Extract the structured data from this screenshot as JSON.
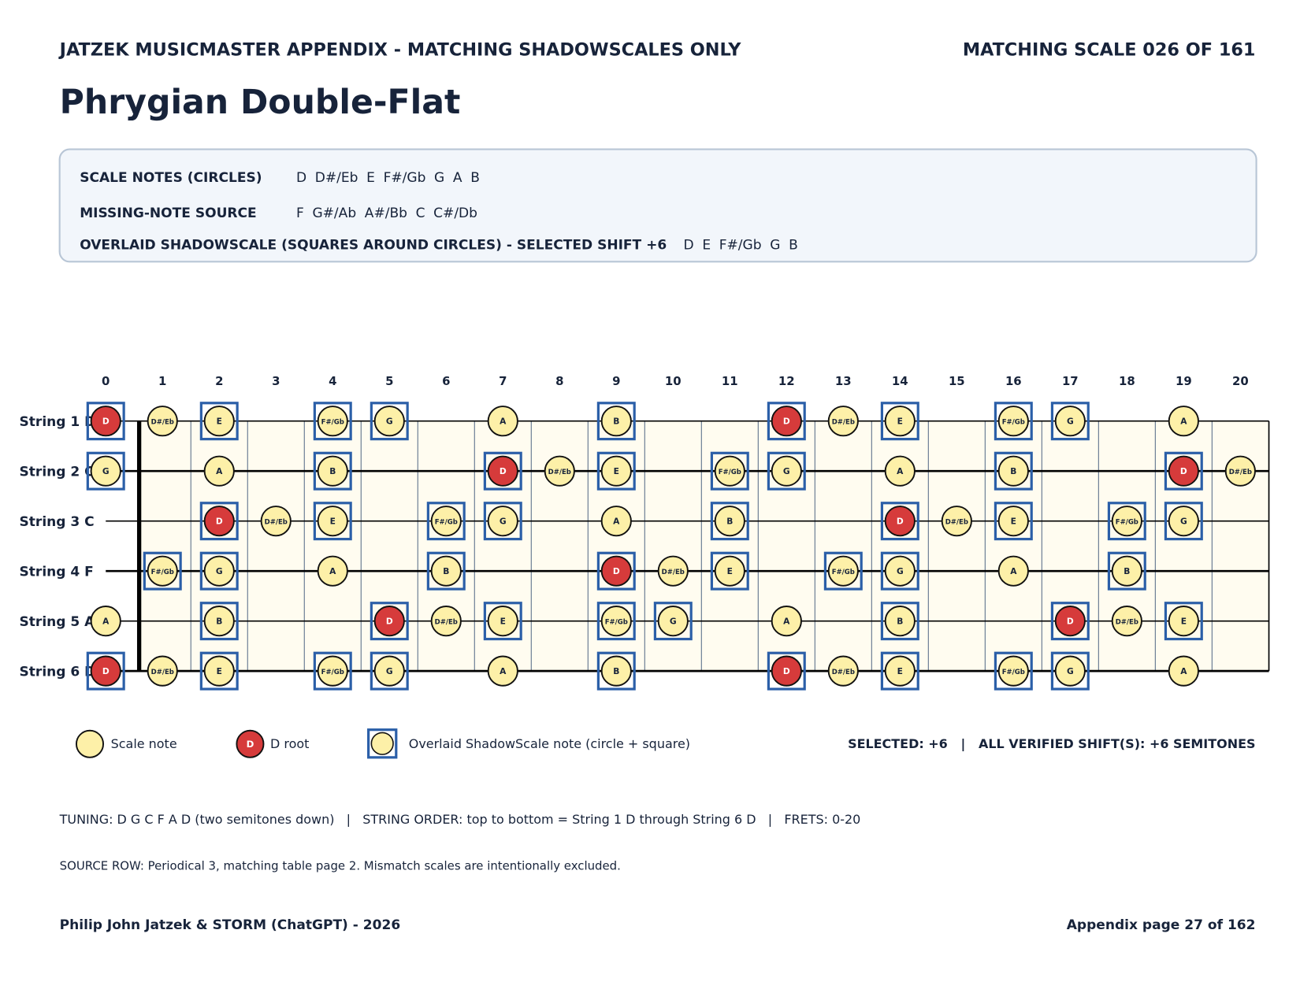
{
  "header": {
    "left": "JATZEK MUSICMASTER APPENDIX - MATCHING SHADOWSCALES ONLY",
    "right": "MATCHING SCALE 026 OF 161"
  },
  "title": "Phrygian Double-Flat",
  "info": [
    {
      "label": "SCALE NOTES (CIRCLES)",
      "notes": [
        "D",
        "D#/Eb",
        "E",
        "F#/Gb",
        "G",
        "A",
        "B"
      ]
    },
    {
      "label": "MISSING-NOTE SOURCE",
      "notes": [
        "F",
        "G#/Ab",
        "A#/Bb",
        "C",
        "C#/Db"
      ]
    },
    {
      "label": "OVERLAID SHADOWSCALE (SQUARES AROUND CIRCLES) - SELECTED SHIFT +6",
      "notes": [
        "D",
        "E",
        "F#/Gb",
        "G",
        "B"
      ]
    }
  ],
  "fretboard": {
    "frets": [
      0,
      1,
      2,
      3,
      4,
      5,
      6,
      7,
      8,
      9,
      10,
      11,
      12,
      13,
      14,
      15,
      16,
      17,
      18,
      19,
      20
    ],
    "strings": [
      {
        "label": "String 1 D",
        "notes": [
          "D",
          "D#/Eb",
          "E",
          null,
          "F#/Gb",
          "G",
          null,
          "A",
          null,
          "B",
          null,
          null,
          "D",
          "D#/Eb",
          "E",
          null,
          "F#/Gb",
          "G",
          null,
          "A",
          null
        ]
      },
      {
        "label": "String 2 G",
        "notes": [
          "G",
          null,
          "A",
          null,
          "B",
          null,
          null,
          "D",
          "D#/Eb",
          "E",
          null,
          "F#/Gb",
          "G",
          null,
          "A",
          null,
          "B",
          null,
          null,
          "D",
          "D#/Eb"
        ]
      },
      {
        "label": "String 3 C",
        "notes": [
          null,
          null,
          "D",
          "D#/Eb",
          "E",
          null,
          "F#/Gb",
          "G",
          null,
          "A",
          null,
          "B",
          null,
          null,
          "D",
          "D#/Eb",
          "E",
          null,
          "F#/Gb",
          "G",
          null
        ]
      },
      {
        "label": "String 4 F",
        "notes": [
          null,
          "F#/Gb",
          "G",
          null,
          "A",
          null,
          "B",
          null,
          null,
          "D",
          "D#/Eb",
          "E",
          null,
          "F#/Gb",
          "G",
          null,
          "A",
          null,
          "B",
          null,
          null
        ]
      },
      {
        "label": "String 5 A",
        "notes": [
          "A",
          null,
          "B",
          null,
          null,
          "D",
          "D#/Eb",
          "E",
          null,
          "F#/Gb",
          "G",
          null,
          "A",
          null,
          "B",
          null,
          null,
          "D",
          "D#/Eb",
          "E",
          null
        ]
      },
      {
        "label": "String 6 D",
        "notes": [
          "D",
          "D#/Eb",
          "E",
          null,
          "F#/Gb",
          "G",
          null,
          "A",
          null,
          "B",
          null,
          null,
          "D",
          "D#/Eb",
          "E",
          null,
          "F#/Gb",
          "G",
          null,
          "A",
          null
        ]
      }
    ]
  },
  "legend": {
    "scale": "Scale note",
    "root": "D root",
    "overlay": "Overlaid ShadowScale note (circle + square)",
    "shifts": "SELECTED: +6   |   ALL VERIFIED SHIFT(S): +6 SEMITONES"
  },
  "notes": [
    "TUNING: D G C F A D (two semitones down)   |   STRING ORDER: top to bottom = String 1 D through String 6 D   |   FRETS: 0-20",
    "SOURCE ROW: Periodical 3, matching table page 2. Mismatch scales are intentionally excluded."
  ],
  "footer": {
    "left": "Philip John Jatzek & STORM (ChatGPT) - 2026",
    "right": "Appendix page 27 of 162"
  }
}
